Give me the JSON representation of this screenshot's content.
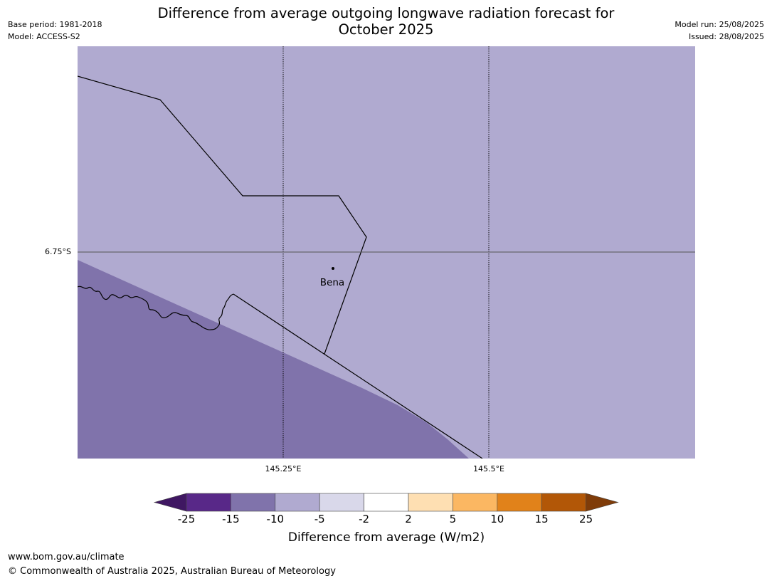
{
  "title": "Difference from average outgoing longwave radiation forecast for October 2025",
  "meta_left": {
    "base_period": "Base period: 1981-2018",
    "model": "Model: ACCESS-S2"
  },
  "meta_right": {
    "model_run": "Model run: 25/08/2025",
    "issued": "Issued: 28/08/2025"
  },
  "map": {
    "latitude_labels": [
      "6.75°S"
    ],
    "longitude_labels": [
      "145.25°E",
      "145.5°E"
    ],
    "place": {
      "name": "Bena"
    },
    "fill_categories": [
      "-15 to -10",
      "-10 to -5"
    ]
  },
  "colorbar": {
    "label": "Difference from average (W/m2)",
    "ticks": [
      "-25",
      "-15",
      "-10",
      "-5",
      "-2",
      "2",
      "5",
      "10",
      "15",
      "25"
    ],
    "colors": [
      "#3f1762",
      "#582888",
      "#8073ab",
      "#b0aad0",
      "#d9d8ea",
      "#ffffff",
      "#fedfb2",
      "#fbb762",
      "#e1821a",
      "#b25707",
      "#7f3c09"
    ]
  },
  "footer": {
    "url": "www.bom.gov.au/climate",
    "copyright": "© Commonwealth of Australia 2025, Australian Bureau of Meteorology"
  }
}
